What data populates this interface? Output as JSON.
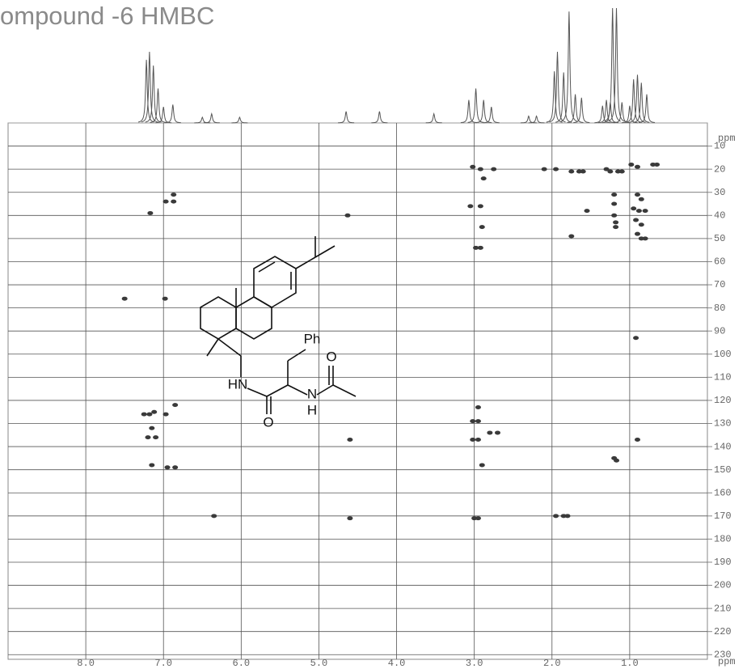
{
  "chart_data": {
    "type": "scatter",
    "title": "ompound -6 HMBC",
    "xlabel": "ppm",
    "ylabel": "ppm",
    "xlim": [
      9,
      0
    ],
    "ylim": [
      0,
      232
    ],
    "xticks": [
      {
        "value": 8,
        "label": "8.0"
      },
      {
        "value": 7,
        "label": "7.0"
      },
      {
        "value": 6,
        "label": "6.0"
      },
      {
        "value": 5,
        "label": "5.0"
      },
      {
        "value": 4,
        "label": "4.0"
      },
      {
        "value": 3,
        "label": "3.0"
      },
      {
        "value": 2,
        "label": "2.0"
      },
      {
        "value": 1,
        "label": "1.0"
      }
    ],
    "yticks": [
      10,
      20,
      30,
      40,
      50,
      60,
      70,
      80,
      90,
      100,
      110,
      120,
      130,
      140,
      150,
      160,
      170,
      180,
      190,
      200,
      210,
      220,
      230
    ],
    "grid": true,
    "color": "#3a3a3a",
    "x": [
      7.17,
      6.97,
      6.87,
      6.87,
      7.5,
      6.98,
      7.25,
      7.18,
      7.12,
      6.97,
      6.85,
      7.2,
      7.1,
      7.15,
      7.15,
      6.95,
      6.85,
      6.35,
      4.63,
      4.6,
      4.6,
      3.02,
      2.92,
      2.75,
      2.88,
      3.05,
      2.92,
      2.9,
      2.98,
      2.92,
      3.02,
      2.95,
      3.02,
      2.95,
      2.95,
      2.8,
      2.7,
      2.9,
      3.0,
      2.95,
      1.95,
      1.85,
      1.8,
      2.1,
      1.95,
      1.75,
      1.65,
      1.6,
      1.3,
      1.25,
      1.15,
      1.1,
      0.98,
      0.9,
      0.7,
      0.65,
      1.2,
      1.2,
      1.2,
      1.18,
      1.18,
      1.55,
      1.75,
      0.9,
      0.85,
      0.95,
      0.88,
      0.8,
      0.92,
      0.85,
      0.9,
      0.85,
      0.8,
      0.92,
      0.9,
      1.2,
      1.17
    ],
    "values": [
      39,
      34,
      31,
      34,
      76,
      76,
      126,
      126,
      125,
      126,
      122,
      136,
      136,
      132,
      148,
      149,
      149,
      170,
      40,
      137,
      171,
      19,
      20,
      20,
      24,
      36,
      36,
      45,
      54,
      54,
      129,
      129,
      137,
      137,
      123,
      134,
      134,
      148,
      171,
      171,
      170,
      170,
      170,
      20,
      20,
      21,
      21,
      21,
      20,
      21,
      21,
      21,
      18,
      19,
      18,
      18,
      31,
      35,
      40,
      43,
      45,
      38,
      49,
      31,
      33,
      37,
      38,
      38,
      42,
      44,
      48,
      50,
      50,
      93,
      137,
      145,
      146
    ],
    "projection": {
      "color": "#555555",
      "ylim": [
        0,
        100
      ],
      "x": [
        7.22,
        7.18,
        7.13,
        7.07,
        7.0,
        6.88,
        6.5,
        6.38,
        6.02,
        4.65,
        4.22,
        3.52,
        3.07,
        2.98,
        2.88,
        2.78,
        2.3,
        2.2,
        1.97,
        1.93,
        1.85,
        1.78,
        1.7,
        1.62,
        1.35,
        1.3,
        1.25,
        1.22,
        1.17,
        1.1,
        1.0,
        0.95,
        0.9,
        0.85,
        0.78
      ],
      "values": [
        55,
        62,
        50,
        30,
        14,
        16,
        5,
        8,
        5,
        10,
        10,
        8,
        20,
        30,
        20,
        14,
        6,
        6,
        45,
        62,
        44,
        97,
        25,
        22,
        15,
        20,
        18,
        100,
        100,
        18,
        15,
        38,
        42,
        35,
        25
      ]
    }
  },
  "structure": {
    "labels": [
      "Ph",
      "O",
      "HN",
      "N",
      "H",
      "O"
    ]
  }
}
